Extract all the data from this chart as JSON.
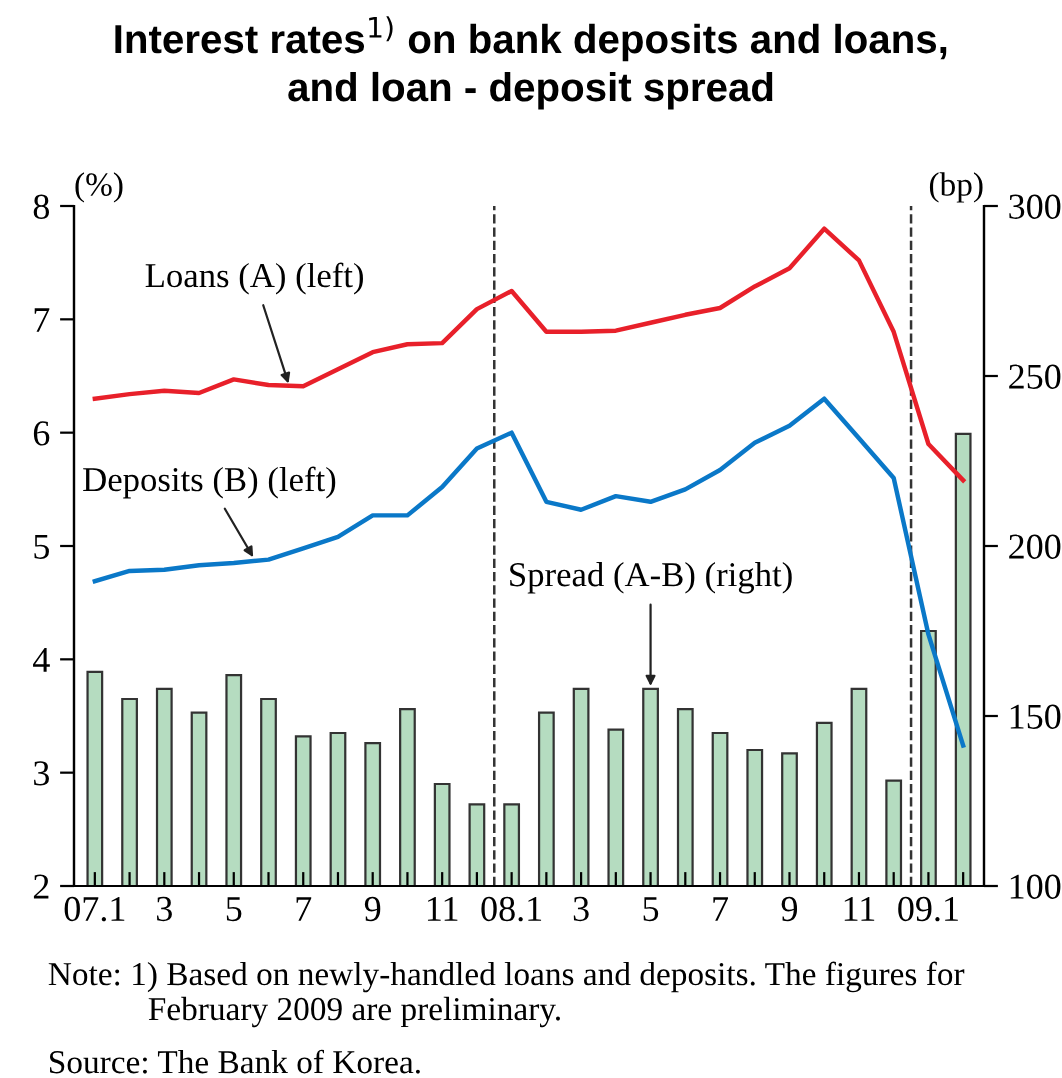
{
  "chart_data": {
    "type": "line",
    "title": "Interest rates$^{1)}$ on bank deposits and loans,\nand loan - deposit spread",
    "ylabel": "(%)",
    "y2label": "(bp)",
    "categories": [
      "07.1",
      null,
      "3",
      null,
      "5",
      null,
      "7",
      null,
      "9",
      null,
      "11",
      null,
      "08.1",
      null,
      "3",
      null,
      "5",
      null,
      "7",
      null,
      "9",
      null,
      "11",
      null,
      "09.1",
      null
    ],
    "series": [
      {
        "name": "Loans (A) (left)",
        "color": "#e8202a",
        "values": [
          6.3,
          6.34,
          6.37,
          6.35,
          6.47,
          6.42,
          6.41,
          6.56,
          6.71,
          6.78,
          6.79,
          7.09,
          7.25,
          6.89,
          6.89,
          6.9,
          6.97,
          7.04,
          7.1,
          7.29,
          7.45,
          7.8,
          7.52,
          6.89,
          5.9,
          5.58
        ]
      },
      {
        "name": "Deposits (B) (left)",
        "color": "#0a78c8",
        "values": [
          4.69,
          4.78,
          4.79,
          4.83,
          4.85,
          4.88,
          4.98,
          5.08,
          5.27,
          5.27,
          5.52,
          5.86,
          6.0,
          5.39,
          5.32,
          5.44,
          5.39,
          5.5,
          5.67,
          5.91,
          6.06,
          6.3,
          5.95,
          5.6,
          4.22,
          3.24
        ]
      },
      {
        "name": "Spread (A-B) (right)",
        "type": "bar",
        "axis": "y2",
        "color": "#b5dcc0",
        "values": [
          163,
          155,
          158,
          151,
          162,
          155,
          144,
          145,
          142,
          152,
          130,
          124,
          124,
          151,
          158,
          146,
          158,
          152,
          145,
          140,
          139,
          148,
          158,
          131,
          175,
          233
        ]
      }
    ],
    "ylim": [
      2,
      8
    ],
    "yticks": [
      2,
      3,
      4,
      5,
      6,
      7,
      8
    ],
    "y2lim": [
      100,
      300
    ],
    "y2ticks": [
      100,
      150,
      200,
      250,
      300
    ],
    "grid": false,
    "legend": false,
    "annotations": [
      "Note: 1) Based on newly-handled loans and deposits. The figures for\n            February 2009 are preliminary.",
      "Source: The Bank of Korea."
    ]
  }
}
